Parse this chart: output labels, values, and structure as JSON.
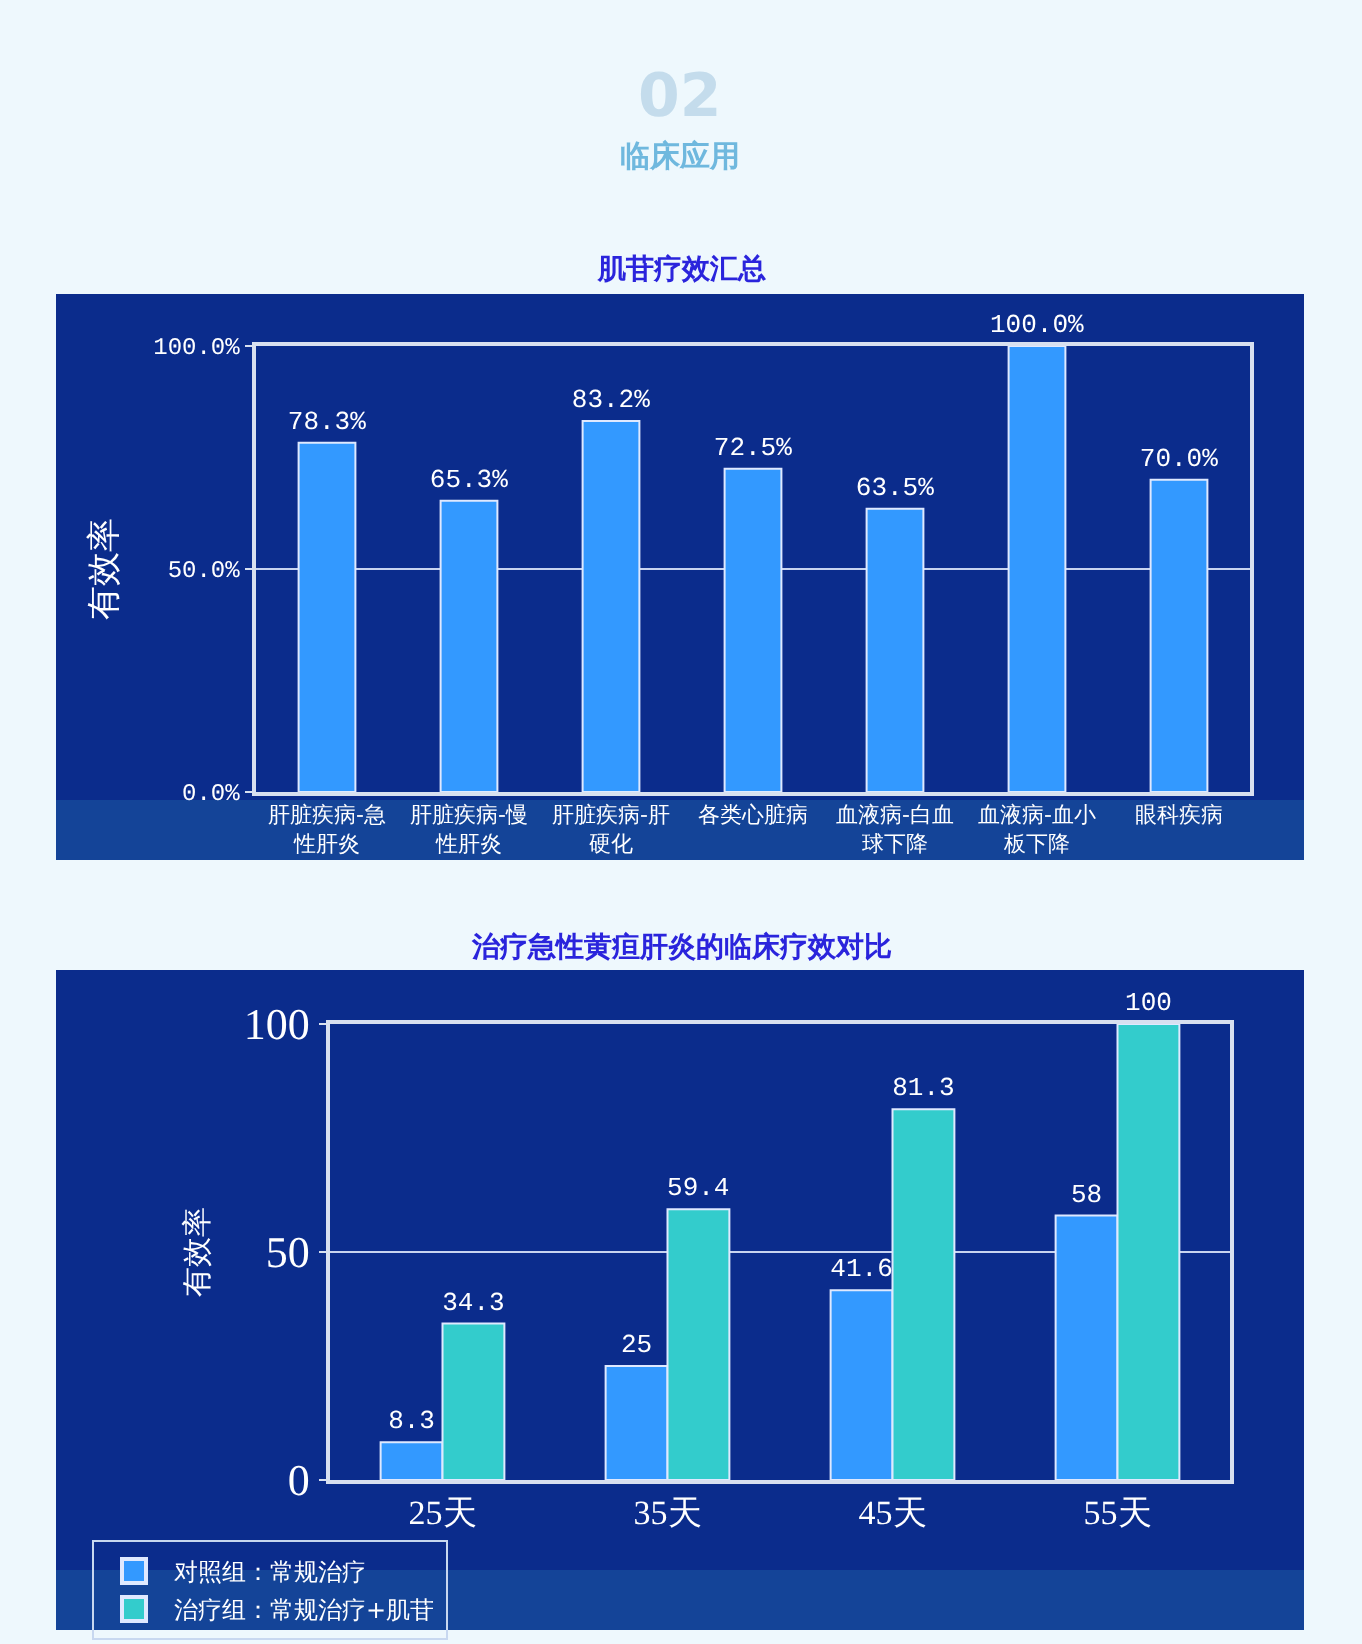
{
  "chart_data": [
    {
      "type": "bar",
      "title": "肌苷疗效汇总",
      "annotations": [
        "02",
        "临床应用"
      ],
      "categories": [
        "肝脏疾病-急性肝炎",
        "肝脏疾病-慢性肝炎",
        "肝脏疾病-肝硬化",
        "各类心脏病",
        "血液病-白血球下降",
        "血液病-血小板下降",
        "眼科疾病"
      ],
      "values": [
        78.3,
        65.3,
        83.2,
        72.5,
        63.5,
        100.0,
        70.0
      ],
      "color": "#3399ff",
      "value_labels": [
        "78.3%",
        "65.3%",
        "83.2%",
        "72.5%",
        "63.5%",
        "100.0%",
        "70.0%"
      ],
      "ylabel": "有效率",
      "ylim": [
        0,
        100
      ],
      "yticks": [
        {
          "value": 0,
          "label": "0.0%"
        },
        {
          "value": 50,
          "label": "50.0%"
        },
        {
          "value": 100,
          "label": "100.0%"
        }
      ],
      "grid": "y"
    },
    {
      "type": "bar",
      "title": "治疗急性黄疸肝炎的临床疗效对比",
      "categories": [
        "25天",
        "35天",
        "45天",
        "55天"
      ],
      "series": [
        {
          "name": "对照组：常规治疗",
          "color": "#3399ff",
          "values": [
            8.3,
            25,
            41.6,
            58
          ]
        },
        {
          "name": "治疗组：常规治疗+肌苷",
          "color": "#33cccc",
          "values": [
            34.3,
            59.4,
            81.3,
            100
          ]
        }
      ],
      "data_labels": true,
      "ylabel": "有效率",
      "ylim": [
        0,
        100
      ],
      "yticks": [
        0,
        50,
        100
      ],
      "grid": "y",
      "legend": "bottom left"
    }
  ]
}
